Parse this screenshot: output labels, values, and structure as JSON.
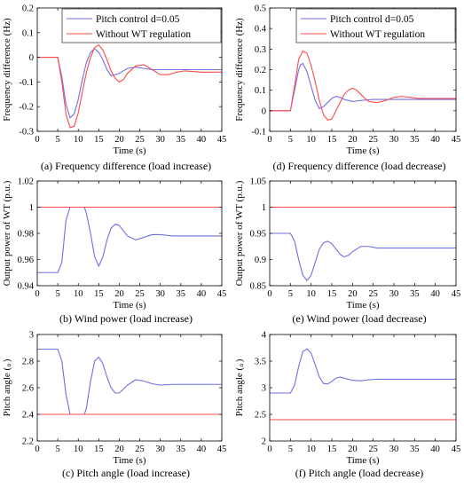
{
  "colors": {
    "pitch": "#6f6fe0",
    "without": "#ff4a4a"
  },
  "chart_data": [
    {
      "id": "a",
      "type": "line",
      "caption": "(a) Frequency difference (load increase)",
      "xlabel": "Time (s)",
      "ylabel": "Frequency difference (Hz)",
      "xlim": [
        0,
        45
      ],
      "ylim": [
        -0.3,
        0.2
      ],
      "xticks": [
        0,
        5,
        10,
        15,
        20,
        25,
        30,
        35,
        40,
        45
      ],
      "yticks": [
        -0.3,
        -0.2,
        -0.1,
        0,
        0.1,
        0.2
      ],
      "ytick_labels": [
        "-0.3",
        "-0.2",
        "-0.1",
        "0",
        "0.1",
        "0.2"
      ],
      "legend": {
        "position": "top-right"
      },
      "series": [
        {
          "name": "Pitch control d=0.05",
          "color_key": "pitch",
          "x": [
            0,
            5,
            6,
            7,
            8,
            9,
            10,
            11,
            12,
            13,
            14,
            15,
            16,
            17,
            18,
            20,
            22,
            24,
            26,
            28,
            30,
            35,
            40,
            45
          ],
          "y": [
            0,
            0,
            -0.08,
            -0.19,
            -0.245,
            -0.23,
            -0.17,
            -0.09,
            -0.02,
            0.02,
            0.035,
            0.02,
            -0.01,
            -0.05,
            -0.075,
            -0.065,
            -0.045,
            -0.04,
            -0.045,
            -0.05,
            -0.05,
            -0.05,
            -0.05,
            -0.05
          ]
        },
        {
          "name": "Without WT regulation",
          "color_key": "without",
          "x": [
            0,
            5,
            6,
            7,
            8,
            9,
            10,
            11,
            12,
            13,
            14,
            15,
            16,
            17,
            18,
            19,
            20,
            21,
            22,
            24,
            26,
            28,
            30,
            32,
            34,
            36,
            40,
            45
          ],
          "y": [
            0,
            0,
            -0.1,
            -0.23,
            -0.285,
            -0.28,
            -0.225,
            -0.14,
            -0.06,
            0,
            0.04,
            0.05,
            0.03,
            -0.01,
            -0.055,
            -0.085,
            -0.1,
            -0.09,
            -0.065,
            -0.035,
            -0.03,
            -0.05,
            -0.07,
            -0.07,
            -0.06,
            -0.055,
            -0.06,
            -0.06
          ]
        }
      ]
    },
    {
      "id": "d",
      "type": "line",
      "caption": "(d) Frequency difference (load decrease)",
      "xlabel": "Time (s)",
      "ylabel": "Frequency difference (Hz)",
      "xlim": [
        0,
        45
      ],
      "ylim": [
        -0.1,
        0.5
      ],
      "xticks": [
        0,
        5,
        10,
        15,
        20,
        25,
        30,
        35,
        40,
        45
      ],
      "yticks": [
        -0.1,
        0,
        0.1,
        0.2,
        0.3,
        0.4,
        0.5
      ],
      "ytick_labels": [
        "-0.1",
        "0",
        "0.1",
        "0.2",
        "0.3",
        "0.4",
        "0.5"
      ],
      "legend": {
        "position": "top-right"
      },
      "series": [
        {
          "name": "Pitch control d=0.05",
          "color_key": "pitch",
          "x": [
            0,
            5,
            6,
            7,
            7.5,
            8,
            9,
            10,
            11,
            12,
            13,
            14,
            15,
            16,
            17,
            18,
            20,
            22,
            25,
            30,
            35,
            40,
            45
          ],
          "y": [
            0,
            0,
            0.1,
            0.2,
            0.225,
            0.23,
            0.19,
            0.12,
            0.05,
            0.01,
            0.02,
            0.04,
            0.06,
            0.07,
            0.065,
            0.055,
            0.045,
            0.05,
            0.055,
            0.055,
            0.055,
            0.055,
            0.055
          ]
        },
        {
          "name": "Without WT regulation",
          "color_key": "without",
          "x": [
            0,
            5,
            6,
            7,
            8,
            9,
            10,
            11,
            12,
            13,
            14,
            15,
            16,
            17,
            18,
            19,
            20,
            21,
            22,
            23,
            24,
            26,
            28,
            30,
            32,
            34,
            36,
            40,
            45
          ],
          "y": [
            0,
            0,
            0.12,
            0.25,
            0.29,
            0.28,
            0.22,
            0.14,
            0.05,
            -0.02,
            -0.045,
            -0.04,
            0,
            0.04,
            0.08,
            0.1,
            0.11,
            0.1,
            0.08,
            0.06,
            0.045,
            0.04,
            0.05,
            0.065,
            0.07,
            0.065,
            0.06,
            0.06,
            0.06
          ]
        }
      ]
    },
    {
      "id": "b",
      "type": "line",
      "caption": "(b) Wind power (load increase)",
      "xlabel": "Time (s)",
      "ylabel": "Output power of WT (p.u.)",
      "xlim": [
        0,
        45
      ],
      "ylim": [
        0.94,
        1.02
      ],
      "xticks": [
        0,
        5,
        10,
        15,
        20,
        25,
        30,
        35,
        40,
        45
      ],
      "yticks": [
        0.94,
        0.96,
        0.98,
        1,
        1.02
      ],
      "ytick_labels": [
        "0.94",
        "0.96",
        "0.98",
        "1",
        "1.02"
      ],
      "series": [
        {
          "name": "Pitch control d=0.05",
          "color_key": "pitch",
          "x": [
            0,
            5,
            6,
            7,
            8,
            11.5,
            12,
            13,
            14,
            15,
            16,
            17,
            18,
            19,
            20,
            21,
            22,
            24,
            26,
            28,
            30,
            33,
            36,
            40,
            45
          ],
          "y": [
            0.95,
            0.95,
            0.958,
            0.99,
            1,
            1,
            0.995,
            0.98,
            0.962,
            0.955,
            0.962,
            0.975,
            0.984,
            0.987,
            0.986,
            0.982,
            0.978,
            0.975,
            0.977,
            0.979,
            0.979,
            0.978,
            0.978,
            0.978,
            0.978
          ]
        },
        {
          "name": "Without WT regulation",
          "color_key": "without",
          "x": [
            0,
            45
          ],
          "y": [
            1,
            1
          ]
        }
      ]
    },
    {
      "id": "e",
      "type": "line",
      "caption": "(e) Wind power (load decrease)",
      "xlabel": "Time (s)",
      "ylabel": "Output power of WT (p.u.)",
      "xlim": [
        0,
        45
      ],
      "ylim": [
        0.85,
        1.05
      ],
      "xticks": [
        0,
        5,
        10,
        15,
        20,
        25,
        30,
        35,
        40,
        45
      ],
      "yticks": [
        0.85,
        0.9,
        0.95,
        1,
        1.05
      ],
      "ytick_labels": [
        "0.85",
        "0.9",
        "0.95",
        "1",
        "1.05"
      ],
      "series": [
        {
          "name": "Pitch control d=0.05",
          "color_key": "pitch",
          "x": [
            0,
            5,
            6,
            7,
            8,
            9,
            10,
            11,
            12,
            13,
            14,
            15,
            16,
            17,
            18,
            19,
            20,
            22,
            24,
            26,
            28,
            30,
            35,
            40,
            45
          ],
          "y": [
            0.95,
            0.95,
            0.935,
            0.9,
            0.87,
            0.86,
            0.87,
            0.895,
            0.92,
            0.932,
            0.935,
            0.93,
            0.92,
            0.91,
            0.905,
            0.908,
            0.915,
            0.925,
            0.925,
            0.922,
            0.922,
            0.922,
            0.922,
            0.922,
            0.922
          ]
        },
        {
          "name": "Without WT regulation",
          "color_key": "without",
          "x": [
            0,
            45
          ],
          "y": [
            1,
            1
          ]
        }
      ]
    },
    {
      "id": "c",
      "type": "line",
      "caption": "(c) Pitch angle (load increase)",
      "xlabel": "Time (s)",
      "ylabel": "Pitch angle (。)",
      "xlim": [
        0,
        45
      ],
      "ylim": [
        2.2,
        3
      ],
      "xticks": [
        0,
        5,
        10,
        15,
        20,
        25,
        30,
        35,
        40,
        45
      ],
      "yticks": [
        2.2,
        2.4,
        2.6,
        2.8,
        3
      ],
      "ytick_labels": [
        "2.2",
        "2.4",
        "2.6",
        "2.8",
        "3"
      ],
      "series": [
        {
          "name": "Pitch control d=0.05",
          "color_key": "pitch",
          "x": [
            0,
            5,
            6,
            7,
            8,
            11.5,
            12,
            13,
            14,
            15,
            16,
            17,
            18,
            19,
            20,
            21,
            22,
            24,
            26,
            28,
            30,
            33,
            36,
            40,
            45
          ],
          "y": [
            2.89,
            2.89,
            2.8,
            2.55,
            2.4,
            2.4,
            2.45,
            2.65,
            2.8,
            2.83,
            2.78,
            2.68,
            2.6,
            2.56,
            2.56,
            2.59,
            2.62,
            2.66,
            2.65,
            2.63,
            2.62,
            2.625,
            2.625,
            2.625,
            2.625
          ]
        },
        {
          "name": "Without WT regulation",
          "color_key": "without",
          "x": [
            0,
            45
          ],
          "y": [
            2.4,
            2.4
          ]
        }
      ]
    },
    {
      "id": "f",
      "type": "line",
      "caption": "(f) Pitch angle (load decrease)",
      "xlabel": "Time (s)",
      "ylabel": "Pitch angle (。)",
      "xlim": [
        0,
        45
      ],
      "ylim": [
        2,
        4
      ],
      "xticks": [
        0,
        5,
        10,
        15,
        20,
        25,
        30,
        35,
        40,
        45
      ],
      "yticks": [
        2,
        2.5,
        3,
        3.5,
        4
      ],
      "ytick_labels": [
        "2",
        "2.5",
        "3",
        "3.5",
        "4"
      ],
      "series": [
        {
          "name": "Pitch control d=0.05",
          "color_key": "pitch",
          "x": [
            0,
            5,
            6,
            7,
            8,
            9,
            10,
            11,
            12,
            13,
            14,
            15,
            16,
            17,
            18,
            20,
            22,
            24,
            26,
            30,
            35,
            40,
            45
          ],
          "y": [
            2.9,
            2.9,
            3.05,
            3.4,
            3.68,
            3.73,
            3.65,
            3.43,
            3.2,
            3.08,
            3.07,
            3.12,
            3.18,
            3.2,
            3.18,
            3.14,
            3.13,
            3.15,
            3.16,
            3.16,
            3.16,
            3.16,
            3.16
          ]
        },
        {
          "name": "Without WT regulation",
          "color_key": "without",
          "x": [
            0,
            45
          ],
          "y": [
            2.4,
            2.4
          ]
        }
      ]
    }
  ]
}
